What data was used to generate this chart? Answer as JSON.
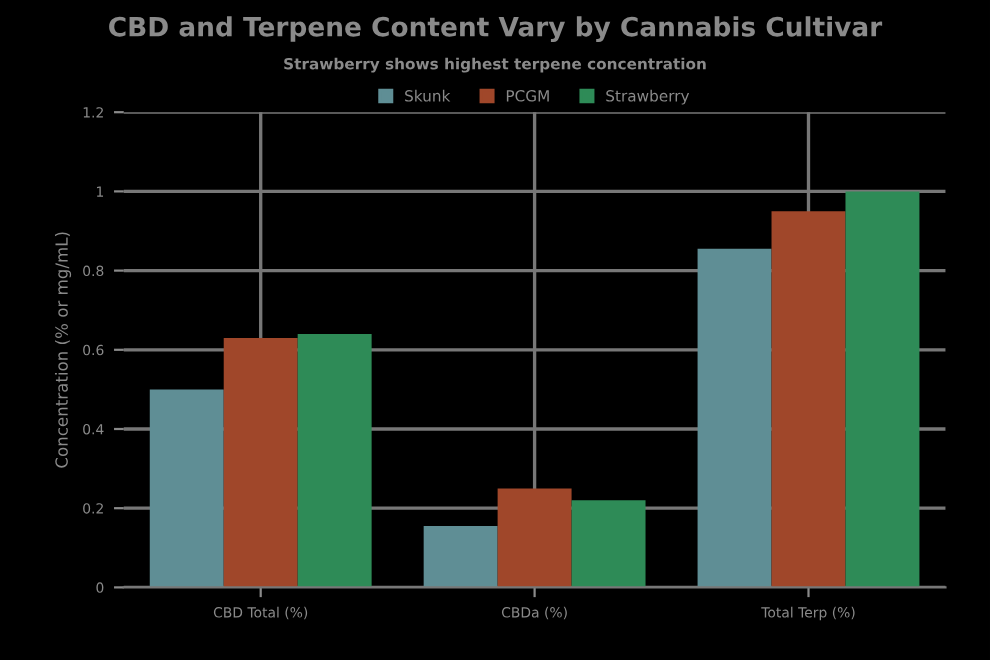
{
  "chart_data": {
    "type": "bar",
    "title": "CBD and Terpene Content Vary by Cannabis Cultivar",
    "subtitle": "Strawberry shows highest terpene concentration",
    "ylabel": "Concentration (% or mg/mL)",
    "categories": [
      "CBD Total (%)",
      "CBDa (%)",
      "Total Terp (%)"
    ],
    "series": [
      {
        "name": "Skunk",
        "color": "#5f8e95",
        "values": [
          0.5,
          0.155,
          0.855
        ]
      },
      {
        "name": "PCGM",
        "color": "#a0472a",
        "values": [
          0.63,
          0.25,
          0.95
        ]
      },
      {
        "name": "Strawberry",
        "color": "#2e8b57",
        "values": [
          0.64,
          0.22,
          1.0
        ]
      }
    ],
    "ylim": [
      0,
      1.2
    ],
    "yticks": [
      0,
      0.2,
      0.4,
      0.6,
      0.8,
      1,
      1.2
    ],
    "grid": true,
    "legend": "top"
  }
}
